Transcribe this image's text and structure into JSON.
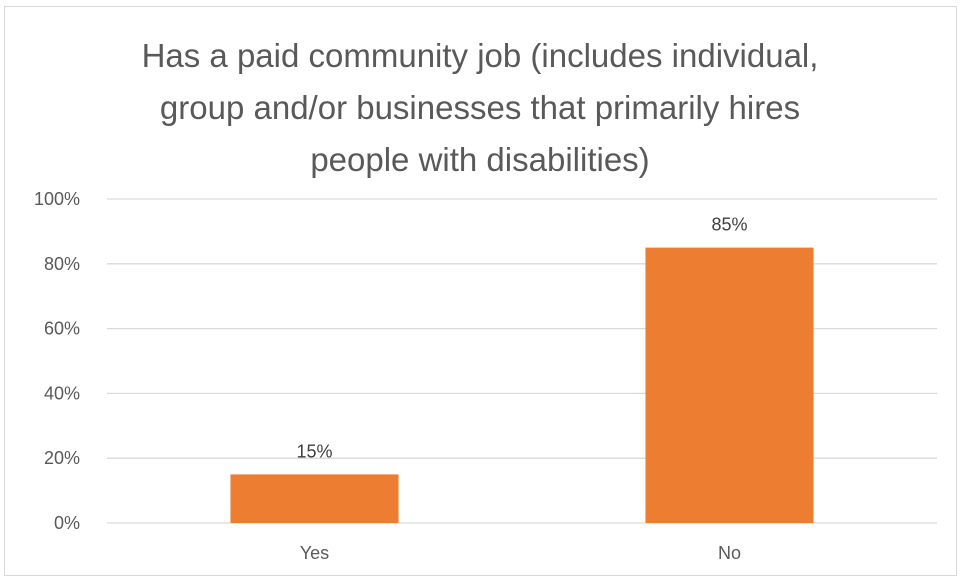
{
  "chart_data": {
    "type": "bar",
    "title": "Has a paid community job (includes individual,\ngroup and/or businesses that primarily hires\npeople with disabilities)",
    "categories": [
      "Yes",
      "No"
    ],
    "values": [
      15,
      85
    ],
    "data_labels": [
      "15%",
      "85%"
    ],
    "xlabel": "",
    "ylabel": "",
    "ylim": [
      0,
      100
    ],
    "yticks": [
      0,
      20,
      40,
      60,
      80,
      100
    ],
    "ytick_labels": [
      "0%",
      "20%",
      "40%",
      "60%",
      "80%",
      "100%"
    ],
    "grid": true,
    "legend": "none",
    "bar_color": "#ED7D31",
    "gridline_color": "#d9d9d9"
  }
}
